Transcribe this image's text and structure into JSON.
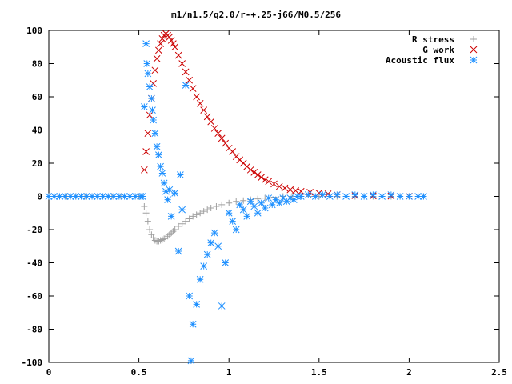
{
  "chart_data": {
    "type": "scatter",
    "title": "m1/n1.5/q2.0/r-+.25-j66/M0.5/256",
    "xlabel": "",
    "ylabel": "",
    "xlim": [
      0,
      2.5
    ],
    "ylim": [
      -100,
      100
    ],
    "x_ticks": [
      0,
      0.5,
      1,
      1.5,
      2,
      2.5
    ],
    "x_tick_labels": [
      "0",
      "0.5",
      "1",
      "1.5",
      "2",
      "2.5"
    ],
    "y_ticks": [
      -100,
      -80,
      -60,
      -40,
      -20,
      0,
      20,
      40,
      60,
      80,
      100
    ],
    "y_tick_labels": [
      "-100",
      "-80",
      "-60",
      "-40",
      "-20",
      "0",
      "20",
      "40",
      "60",
      "80",
      "100"
    ],
    "grid": false,
    "legend_position": "top-right",
    "series": [
      {
        "name": "R stress",
        "marker": "plus",
        "color": "#a0a0a0",
        "x": [
          0.0,
          0.05,
          0.1,
          0.15,
          0.2,
          0.25,
          0.3,
          0.35,
          0.4,
          0.45,
          0.5,
          0.53,
          0.54,
          0.55,
          0.56,
          0.57,
          0.58,
          0.59,
          0.6,
          0.61,
          0.62,
          0.63,
          0.64,
          0.65,
          0.66,
          0.67,
          0.68,
          0.69,
          0.7,
          0.72,
          0.74,
          0.76,
          0.78,
          0.8,
          0.82,
          0.84,
          0.86,
          0.88,
          0.9,
          0.93,
          0.96,
          1.0,
          1.04,
          1.08,
          1.12,
          1.16,
          1.2,
          1.25,
          1.3,
          1.35,
          1.4,
          1.45,
          1.5,
          1.6,
          1.7,
          1.8,
          1.9,
          2.0,
          2.08
        ],
        "y": [
          0,
          0,
          0,
          0,
          0,
          0,
          0,
          0,
          0,
          0,
          0,
          -6,
          -10,
          -15,
          -20,
          -23,
          -25,
          -26.5,
          -27,
          -27,
          -26.5,
          -26,
          -25.5,
          -25,
          -24,
          -23,
          -22,
          -21,
          -20,
          -18,
          -16.5,
          -15,
          -13.5,
          -12,
          -11,
          -10,
          -9,
          -8,
          -7,
          -6,
          -5,
          -4,
          -3,
          -2.5,
          -2,
          -1.5,
          -1,
          -0.5,
          0,
          0,
          0,
          0,
          0,
          0,
          0,
          0,
          0,
          0,
          0
        ]
      },
      {
        "name": "G work",
        "marker": "cross",
        "color": "#cc0000",
        "x": [
          0.53,
          0.54,
          0.55,
          0.56,
          0.57,
          0.58,
          0.59,
          0.6,
          0.61,
          0.62,
          0.63,
          0.64,
          0.65,
          0.66,
          0.67,
          0.68,
          0.69,
          0.7,
          0.72,
          0.74,
          0.76,
          0.78,
          0.8,
          0.82,
          0.84,
          0.86,
          0.88,
          0.9,
          0.92,
          0.94,
          0.96,
          0.98,
          1.0,
          1.02,
          1.04,
          1.06,
          1.08,
          1.1,
          1.12,
          1.14,
          1.16,
          1.18,
          1.2,
          1.22,
          1.25,
          1.28,
          1.31,
          1.34,
          1.37,
          1.4,
          1.45,
          1.5,
          1.55,
          1.6,
          1.7,
          1.8,
          1.9,
          2.0
        ],
        "y": [
          16,
          27,
          38,
          49,
          59,
          68,
          76,
          83,
          88,
          92,
          95,
          97,
          98,
          97,
          96,
          94,
          92,
          90,
          85,
          80,
          75,
          70,
          65,
          60,
          56,
          52,
          48,
          45,
          41,
          38,
          35,
          32,
          29,
          27,
          24,
          22,
          20,
          18,
          16,
          14.5,
          13,
          11.5,
          10,
          9,
          7.5,
          6,
          5,
          4,
          3.5,
          3,
          2.5,
          2,
          1.5,
          1,
          0.5,
          0.3,
          0.2,
          0.1
        ]
      },
      {
        "name": "Acoustic flux",
        "marker": "star",
        "color": "#1e90ff",
        "x": [
          0.0,
          0.03,
          0.06,
          0.09,
          0.12,
          0.15,
          0.18,
          0.21,
          0.24,
          0.27,
          0.3,
          0.33,
          0.36,
          0.39,
          0.42,
          0.45,
          0.48,
          0.51,
          0.52,
          0.53,
          0.54,
          0.545,
          0.55,
          0.56,
          0.57,
          0.575,
          0.58,
          0.59,
          0.6,
          0.61,
          0.62,
          0.63,
          0.64,
          0.65,
          0.66,
          0.67,
          0.68,
          0.7,
          0.72,
          0.73,
          0.74,
          0.76,
          0.78,
          0.79,
          0.8,
          0.82,
          0.84,
          0.86,
          0.88,
          0.9,
          0.92,
          0.94,
          0.96,
          0.98,
          1.0,
          1.02,
          1.04,
          1.06,
          1.08,
          1.1,
          1.12,
          1.14,
          1.16,
          1.18,
          1.2,
          1.22,
          1.24,
          1.26,
          1.28,
          1.3,
          1.32,
          1.34,
          1.36,
          1.38,
          1.4,
          1.44,
          1.48,
          1.52,
          1.56,
          1.6,
          1.65,
          1.7,
          1.75,
          1.8,
          1.85,
          1.9,
          1.95,
          2.0,
          2.05,
          2.08
        ],
        "y": [
          0,
          0,
          0,
          0,
          0,
          0,
          0,
          0,
          0,
          0,
          0,
          0,
          0,
          0,
          0,
          0,
          0,
          0,
          0,
          54,
          92,
          80,
          74,
          66,
          59,
          52,
          46,
          38,
          30,
          25,
          18,
          14,
          8,
          3,
          -2,
          4,
          -12,
          2,
          -33,
          13,
          -8,
          67,
          -60,
          -99,
          -77,
          -65,
          -50,
          -42,
          -35,
          -28,
          -22,
          -30,
          -66,
          -40,
          -10,
          -15,
          -20,
          -5,
          -8,
          -12,
          -3,
          -6,
          -10,
          -4,
          -7,
          -1,
          -5,
          -2,
          -4,
          -1,
          -3,
          -1,
          -2,
          0,
          0,
          1,
          0,
          1,
          0,
          1,
          0,
          1,
          0,
          1,
          0,
          1,
          0,
          0,
          0,
          0
        ]
      }
    ]
  }
}
